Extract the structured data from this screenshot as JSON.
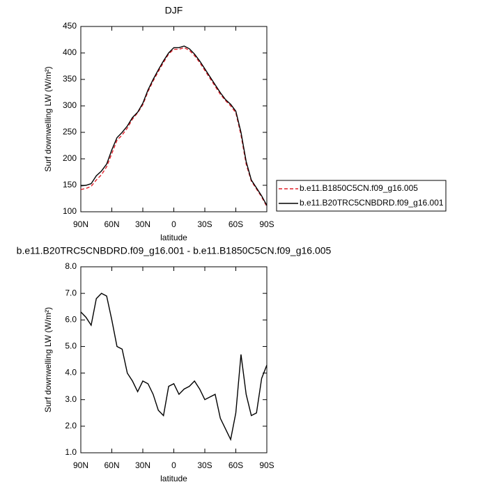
{
  "chart_data": [
    {
      "type": "line",
      "title": "DJF",
      "xlabel": "latitude",
      "ylabel": "Surf downwelling LW (W/m²)",
      "x": [
        90,
        85,
        80,
        75,
        70,
        65,
        60,
        55,
        50,
        45,
        40,
        35,
        30,
        25,
        20,
        15,
        10,
        5,
        0,
        -5,
        -10,
        -15,
        -20,
        -25,
        -30,
        -35,
        -40,
        -45,
        -50,
        -55,
        -60,
        -65,
        -70,
        -75,
        -80,
        -85,
        -90
      ],
      "series": [
        {
          "name": "b.e11.B1850C5CN.f09_g16.005",
          "color": "#e0202a",
          "dash": true,
          "values": [
            142,
            144,
            148,
            160,
            170,
            185,
            210,
            235,
            245,
            258,
            275,
            287,
            302,
            327,
            347,
            365,
            382,
            398,
            407,
            407,
            410,
            405,
            395,
            382,
            367,
            352,
            337,
            322,
            310,
            300,
            287,
            245,
            190,
            158,
            143,
            128,
            110
          ]
        },
        {
          "name": "b.e11.B20TRC5CNBDRD.f09_g16.001",
          "color": "#000000",
          "dash": false,
          "values": [
            149,
            150,
            153,
            168,
            177,
            190,
            217,
            240,
            250,
            262,
            278,
            288,
            305,
            330,
            350,
            368,
            385,
            400,
            410,
            410,
            413,
            408,
            398,
            385,
            370,
            355,
            340,
            325,
            312,
            303,
            290,
            250,
            195,
            160,
            145,
            130,
            112
          ]
        }
      ],
      "xlim": [
        90,
        -90
      ],
      "xticks": [
        {
          "value": 90,
          "label": "90N"
        },
        {
          "value": 60,
          "label": "60N"
        },
        {
          "value": 30,
          "label": "30N"
        },
        0,
        {
          "value": -30,
          "label": "30S"
        },
        {
          "value": -60,
          "label": "60S"
        },
        {
          "value": -90,
          "label": "90S"
        }
      ],
      "ylim": [
        100,
        450
      ],
      "yticks": [
        100,
        150,
        200,
        250,
        300,
        350,
        400,
        450
      ],
      "legend": "right"
    },
    {
      "type": "line",
      "title": "b.e11.B20TRC5CNBDRD.f09_g16.001 - b.e11.B1850C5CN.f09_g16.005",
      "xlabel": "latitude",
      "ylabel": "Surf downwelling LW (W/m²)",
      "x": [
        90,
        85,
        80,
        75,
        70,
        65,
        60,
        55,
        50,
        45,
        40,
        35,
        30,
        25,
        20,
        15,
        10,
        5,
        0,
        -5,
        -10,
        -15,
        -20,
        -25,
        -30,
        -35,
        -40,
        -45,
        -50,
        -55,
        -60,
        -65,
        -70,
        -75,
        -80,
        -85,
        -90
      ],
      "series": [
        {
          "color": "#000000",
          "dash": false,
          "values": [
            6.3,
            6.1,
            5.8,
            6.8,
            7.0,
            6.9,
            6.0,
            5.0,
            4.9,
            4.0,
            3.7,
            3.3,
            3.7,
            3.6,
            3.2,
            2.6,
            2.4,
            3.5,
            3.6,
            3.2,
            3.4,
            3.5,
            3.7,
            3.4,
            3.0,
            3.1,
            3.2,
            2.3,
            1.9,
            1.5,
            2.5,
            4.7,
            3.2,
            2.4,
            2.5,
            3.8,
            4.3
          ]
        }
      ],
      "xlim": [
        90,
        -90
      ],
      "xticks": [
        {
          "value": 90,
          "label": "90N"
        },
        {
          "value": 60,
          "label": "60N"
        },
        {
          "value": 30,
          "label": "30N"
        },
        0,
        {
          "value": -30,
          "label": "30S"
        },
        {
          "value": -60,
          "label": "60S"
        },
        {
          "value": -90,
          "label": "90S"
        }
      ],
      "ylim": [
        1,
        8
      ],
      "yticks": [
        {
          "value": 1,
          "label": "1.0"
        },
        {
          "value": 2,
          "label": "2.0"
        },
        {
          "value": 3,
          "label": "3.0"
        },
        {
          "value": 4,
          "label": "4.0"
        },
        {
          "value": 5,
          "label": "5.0"
        },
        {
          "value": 6,
          "label": "6.0"
        },
        {
          "value": 7,
          "label": "7.0"
        },
        {
          "value": 8,
          "label": "8.0"
        }
      ]
    }
  ]
}
